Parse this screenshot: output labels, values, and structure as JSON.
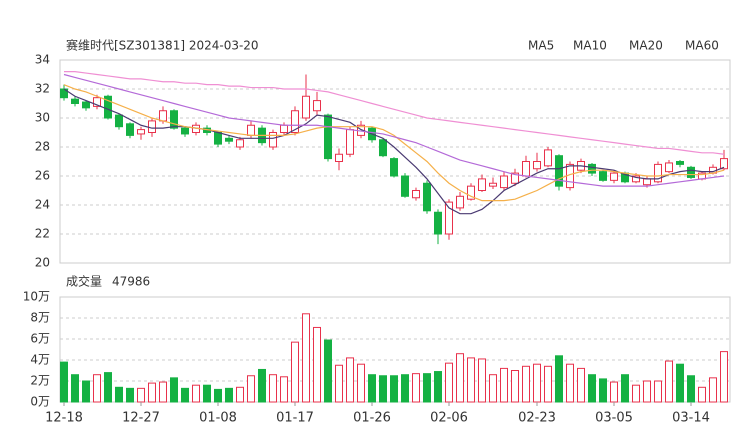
{
  "chart_data": [
    {
      "type": "candlestick",
      "title": "赛维时代[SZ301381] 2024-03-20",
      "open": [
        32.0,
        31.3,
        31.1,
        30.8,
        31.5,
        30.2,
        29.6,
        28.9,
        29.0,
        29.8,
        30.5,
        29.3,
        29.0,
        29.3,
        29.0,
        28.6,
        28.0,
        28.8,
        29.3,
        28.0,
        29.0,
        29.0,
        30.0,
        30.5,
        30.2,
        27.0,
        27.5,
        28.8,
        29.3,
        28.5,
        27.2,
        26.0,
        24.5,
        25.5,
        23.5,
        22.0,
        23.8,
        24.4,
        25.0,
        25.3,
        25.2,
        25.5,
        26.0,
        26.5,
        26.7,
        27.4,
        25.2,
        26.4,
        26.8,
        26.3,
        25.7,
        26.2,
        25.6,
        25.4,
        25.6,
        26.3,
        27.0,
        26.6,
        25.8,
        26.2,
        26.5
      ],
      "close": [
        31.4,
        31.0,
        30.7,
        31.4,
        30.0,
        29.4,
        28.8,
        29.2,
        29.8,
        30.5,
        29.3,
        28.9,
        29.5,
        29.0,
        28.2,
        28.4,
        28.5,
        29.5,
        28.3,
        29.0,
        29.5,
        30.5,
        31.5,
        31.2,
        27.2,
        27.5,
        29.2,
        29.5,
        28.5,
        27.4,
        26.0,
        24.6,
        25.0,
        23.6,
        22.0,
        24.2,
        24.6,
        25.3,
        25.8,
        25.5,
        26.0,
        26.2,
        27.0,
        27.0,
        27.8,
        25.3,
        26.8,
        27.0,
        26.2,
        25.7,
        26.2,
        25.6,
        26.0,
        25.8,
        26.8,
        26.9,
        26.8,
        25.9,
        26.2,
        26.6,
        27.2
      ],
      "high": [
        32.3,
        31.5,
        31.2,
        31.6,
        31.6,
        30.3,
        29.7,
        29.4,
        30.0,
        30.8,
        30.6,
        29.4,
        29.7,
        29.5,
        29.1,
        28.8,
        28.7,
        29.8,
        29.5,
        29.2,
        29.7,
        30.8,
        33.0,
        31.8,
        30.3,
        27.9,
        29.4,
        29.8,
        29.4,
        28.6,
        27.3,
        26.2,
        25.2,
        25.7,
        23.7,
        24.4,
        24.9,
        25.5,
        26.1,
        25.9,
        26.3,
        26.5,
        27.4,
        27.6,
        28.0,
        27.5,
        27.0,
        27.2,
        26.9,
        26.4,
        26.4,
        26.3,
        26.2,
        26.0,
        27.0,
        27.1,
        27.1,
        26.7,
        26.3,
        26.8,
        27.8
      ],
      "low": [
        31.2,
        30.8,
        30.5,
        30.6,
        29.9,
        29.2,
        28.6,
        28.5,
        28.7,
        29.6,
        29.2,
        28.7,
        28.8,
        28.8,
        28.0,
        28.2,
        27.8,
        28.6,
        28.1,
        27.8,
        28.8,
        28.8,
        29.8,
        30.2,
        27.0,
        26.4,
        27.3,
        28.6,
        28.3,
        27.3,
        25.9,
        24.5,
        24.3,
        23.4,
        21.3,
        21.6,
        23.6,
        24.3,
        24.9,
        25.1,
        25.0,
        25.3,
        25.9,
        26.3,
        26.6,
        25.0,
        25.0,
        26.2,
        26.0,
        25.6,
        25.5,
        25.5,
        25.5,
        25.2,
        25.5,
        26.2,
        26.6,
        25.8,
        25.7,
        26.1,
        26.4
      ],
      "up_color": "#e8314b",
      "down_color": "#14b143",
      "series": [
        {
          "name": "MA5",
          "color": "#4a3a72",
          "values": [
            32.0,
            31.5,
            31.2,
            30.9,
            30.6,
            30.3,
            29.9,
            29.5,
            29.3,
            29.3,
            29.4,
            29.4,
            29.3,
            29.2,
            29.0,
            28.8,
            28.6,
            28.6,
            28.6,
            28.6,
            28.8,
            29.2,
            29.6,
            30.2,
            30.1,
            29.9,
            29.7,
            29.2,
            28.9,
            28.6,
            28.0,
            27.3,
            26.6,
            25.8,
            24.8,
            23.8,
            23.4,
            23.4,
            23.7,
            24.3,
            25.0,
            25.4,
            25.8,
            26.2,
            26.5,
            26.5,
            26.7,
            26.7,
            26.6,
            26.5,
            26.4,
            26.1,
            25.9,
            25.8,
            25.8,
            26.1,
            26.3,
            26.4,
            26.3,
            26.3,
            26.6
          ]
        },
        {
          "name": "MA10",
          "color": "#f5b04a",
          "values": [
            32.3,
            32.0,
            31.8,
            31.5,
            31.2,
            30.9,
            30.6,
            30.3,
            30.0,
            29.8,
            29.6,
            29.4,
            29.3,
            29.2,
            29.1,
            29.0,
            28.9,
            28.8,
            28.8,
            28.8,
            28.8,
            28.9,
            29.1,
            29.3,
            29.4,
            29.4,
            29.4,
            29.4,
            29.4,
            29.2,
            28.8,
            28.2,
            27.6,
            27.0,
            26.2,
            25.5,
            25.0,
            24.6,
            24.3,
            24.3,
            24.3,
            24.4,
            24.7,
            25.0,
            25.4,
            25.8,
            26.1,
            26.3,
            26.4,
            26.4,
            26.3,
            26.2,
            26.1,
            26.0,
            26.0,
            26.1,
            26.1,
            26.1,
            26.1,
            26.2,
            26.4
          ]
        },
        {
          "name": "MA20",
          "color": "#b46ad8",
          "values": [
            33.0,
            32.8,
            32.6,
            32.4,
            32.2,
            32.0,
            31.8,
            31.6,
            31.4,
            31.2,
            31.0,
            30.8,
            30.6,
            30.4,
            30.2,
            30.0,
            29.9,
            29.8,
            29.7,
            29.6,
            29.5,
            29.5,
            29.5,
            29.5,
            29.4,
            29.3,
            29.2,
            29.1,
            29.0,
            28.9,
            28.7,
            28.5,
            28.3,
            28.0,
            27.7,
            27.4,
            27.1,
            26.9,
            26.7,
            26.5,
            26.3,
            26.1,
            26.0,
            25.9,
            25.8,
            25.7,
            25.6,
            25.5,
            25.4,
            25.3,
            25.3,
            25.3,
            25.3,
            25.3,
            25.4,
            25.5,
            25.6,
            25.7,
            25.8,
            25.9,
            26.0
          ]
        },
        {
          "name": "MA60",
          "color": "#ef8fd3",
          "values": [
            33.2,
            33.2,
            33.1,
            33.0,
            32.9,
            32.8,
            32.7,
            32.7,
            32.6,
            32.5,
            32.5,
            32.4,
            32.4,
            32.3,
            32.3,
            32.2,
            32.2,
            32.1,
            32.1,
            32.1,
            32.0,
            32.0,
            32.0,
            31.9,
            31.8,
            31.6,
            31.4,
            31.2,
            31.0,
            30.8,
            30.6,
            30.4,
            30.2,
            30.0,
            29.9,
            29.8,
            29.7,
            29.6,
            29.5,
            29.4,
            29.3,
            29.2,
            29.1,
            29.0,
            28.9,
            28.8,
            28.7,
            28.6,
            28.5,
            28.4,
            28.3,
            28.2,
            28.1,
            28.0,
            27.9,
            27.9,
            27.8,
            27.7,
            27.6,
            27.6,
            27.5
          ]
        }
      ],
      "ylim": [
        20,
        34
      ],
      "yticks": [
        20,
        22,
        24,
        26,
        28,
        30,
        32,
        34
      ],
      "grid": true
    },
    {
      "type": "volume",
      "title": "成交量",
      "latest": 47986,
      "categories": [
        "12-18",
        null,
        null,
        null,
        null,
        null,
        null,
        "12-27",
        null,
        null,
        null,
        null,
        null,
        null,
        "01-08",
        null,
        null,
        null,
        null,
        null,
        null,
        "01-17",
        null,
        null,
        null,
        null,
        null,
        null,
        "01-26",
        null,
        null,
        null,
        null,
        null,
        null,
        "02-06",
        null,
        null,
        null,
        null,
        null,
        null,
        null,
        "02-23",
        null,
        null,
        null,
        null,
        null,
        null,
        "03-05",
        null,
        null,
        null,
        null,
        null,
        null,
        "03-14",
        null,
        null,
        null
      ],
      "values": [
        3.8,
        2.6,
        2.0,
        2.6,
        2.8,
        1.4,
        1.3,
        1.3,
        1.8,
        1.9,
        2.3,
        1.3,
        1.6,
        1.6,
        1.2,
        1.3,
        1.4,
        2.5,
        3.1,
        2.6,
        2.4,
        5.7,
        8.4,
        7.1,
        5.9,
        3.5,
        4.2,
        3.6,
        2.6,
        2.5,
        2.5,
        2.6,
        2.7,
        2.7,
        2.9,
        3.7,
        4.6,
        4.2,
        4.1,
        2.6,
        3.2,
        3.0,
        3.4,
        3.6,
        3.4,
        4.4,
        3.6,
        3.2,
        2.6,
        2.2,
        1.9,
        2.6,
        1.6,
        2.0,
        2.0,
        3.9,
        3.6,
        2.5,
        1.4,
        2.3,
        4.7986
      ],
      "ylim": [
        0,
        10
      ],
      "yticks": [
        {
          "value": 0,
          "label": "0万"
        },
        {
          "value": 2,
          "label": "2万"
        },
        {
          "value": 4,
          "label": "4万"
        },
        {
          "value": 6,
          "label": "6万"
        },
        {
          "value": 8,
          "label": "8万"
        },
        {
          "value": 10,
          "label": "10万"
        }
      ],
      "grid": true,
      "tick_color": "#e0303f"
    }
  ]
}
